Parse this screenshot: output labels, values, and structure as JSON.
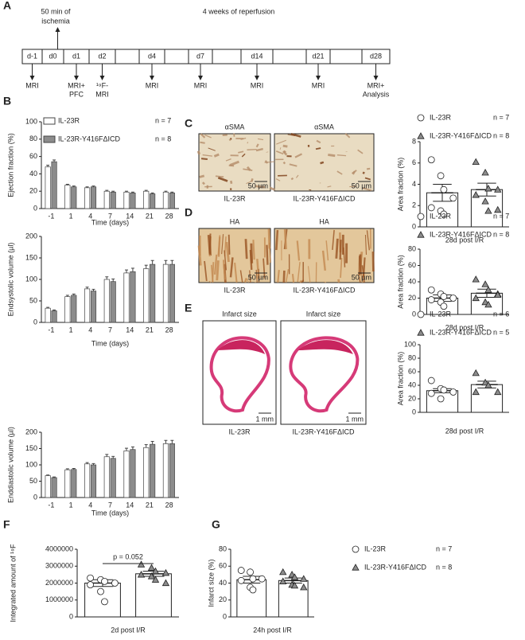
{
  "panel_labels": [
    "A",
    "B",
    "C",
    "D",
    "E",
    "F",
    "G"
  ],
  "timeline": {
    "ischemia": [
      "50 min of",
      "ischemia"
    ],
    "reperfusion": "4 weeks of reperfusion",
    "days": [
      "d-1",
      "d0",
      "d1",
      "d2",
      null,
      "d4",
      null,
      "d7",
      null,
      "d14",
      null,
      "d21",
      null,
      "d28"
    ],
    "events": [
      [
        "MRI"
      ],
      [
        "MRI+",
        "PFC"
      ],
      [
        "¹⁹F-",
        "MRI"
      ],
      [
        "MRI"
      ],
      [
        "MRI"
      ],
      [
        "MRI"
      ],
      [
        "MRI"
      ],
      [
        "MRI+",
        "Analysis"
      ]
    ]
  },
  "micrographs": [
    {
      "labels": [
        "αSMA",
        "αSMA"
      ],
      "scale_bars": [
        "50 µm",
        "50 µm"
      ],
      "captions": [
        "IL-23R",
        "IL-23R-Y416FΔICD"
      ]
    },
    {
      "labels": [
        "HA",
        "HA"
      ],
      "scale_bars": [
        "50 µm",
        "50 µm"
      ],
      "captions": [
        "IL-23R",
        "IL-23R-Y416FΔICD"
      ]
    },
    {
      "labels": [
        "Infarct size",
        "Infarct size"
      ],
      "scale_bars": [
        "1 mm",
        "1 mm"
      ],
      "captions": [
        "IL-23R",
        "IL-23R-Y416FΔICD"
      ]
    }
  ],
  "chart_data": [
    {
      "type": "grouped-bar",
      "y_label": "Ejection fraction (%)",
      "x_label": "Time (days)",
      "categories": [
        "-1",
        "1",
        "4",
        "7",
        "14",
        "21",
        "28"
      ],
      "series": [
        {
          "name": "IL-23R",
          "n_label": "n = 7",
          "color": "#ffffff",
          "values": [
            48,
            27,
            24,
            20,
            19,
            20,
            19
          ],
          "errors": [
            2,
            1,
            1,
            1,
            1,
            1,
            1
          ]
        },
        {
          "name": "IL-23R-Y416FΔICD",
          "n_label": "n = 8",
          "color": "#8c8c8c",
          "values": [
            54,
            25,
            25,
            19,
            18,
            17,
            18
          ],
          "errors": [
            2,
            1,
            1,
            1,
            1,
            1,
            1
          ]
        }
      ],
      "ylim": [
        0,
        100
      ],
      "yticks": [
        0,
        20,
        40,
        60,
        80,
        100
      ]
    },
    {
      "type": "grouped-bar",
      "y_label": "Endsystolic volume (µl)",
      "x_label": "Time (days)",
      "categories": [
        "-1",
        "1",
        "4",
        "7",
        "14",
        "21",
        "28"
      ],
      "series": [
        {
          "color": "#ffffff",
          "values": [
            33,
            60,
            78,
            100,
            115,
            125,
            135
          ],
          "errors": [
            2,
            3,
            4,
            6,
            7,
            8,
            9
          ]
        },
        {
          "color": "#8c8c8c",
          "values": [
            27,
            63,
            73,
            95,
            118,
            135,
            135
          ],
          "errors": [
            2,
            3,
            4,
            6,
            8,
            9,
            9
          ]
        }
      ],
      "ylim": [
        0,
        200
      ],
      "yticks": [
        0,
        50,
        100,
        150,
        200
      ]
    },
    {
      "type": "grouped-bar",
      "y_label": "Enddiastolic volume (µl)",
      "x_label": "Time (days)",
      "categories": [
        "-1",
        "1",
        "4",
        "7",
        "14",
        "21",
        "28"
      ],
      "series": [
        {
          "color": "#ffffff",
          "values": [
            67,
            85,
            103,
            125,
            143,
            153,
            165
          ],
          "errors": [
            2,
            3,
            4,
            7,
            8,
            9,
            10
          ]
        },
        {
          "color": "#8c8c8c",
          "values": [
            61,
            86,
            100,
            120,
            147,
            163,
            165
          ],
          "errors": [
            2,
            3,
            4,
            6,
            8,
            9,
            10
          ]
        }
      ],
      "ylim": [
        0,
        200
      ],
      "yticks": [
        0,
        50,
        100,
        150,
        200
      ]
    },
    {
      "type": "bar-dot",
      "y_label": "Area fraction (%)",
      "x_label": "28d  post I/R",
      "series": [
        {
          "name": "IL-23R",
          "n_label": "n = 7",
          "color": "#ffffff",
          "marker": "circle",
          "value": 3.2,
          "error": 0.8,
          "points": [
            6.3,
            4.8,
            3.5,
            2.7,
            1.8,
            1.5,
            1.2
          ]
        },
        {
          "name": "IL-23R-Y416FΔICD",
          "n_label": "n = 8",
          "color": "#8c8c8c",
          "marker": "triangle",
          "value": 3.5,
          "error": 0.6,
          "points": [
            6.1,
            5.1,
            3.6,
            3.5,
            3.0,
            2.4,
            1.5,
            1.6
          ]
        }
      ],
      "ylim": [
        0,
        8
      ],
      "yticks": [
        0,
        2,
        4,
        6,
        8
      ]
    },
    {
      "type": "bar-dot",
      "y_label": "Area fraction (%)",
      "x_label": "28d  post I/R",
      "series": [
        {
          "name": "IL-23R",
          "n_label": "n = 7",
          "color": "#ffffff",
          "marker": "circle",
          "value": 20,
          "error": 4,
          "points": [
            30,
            25,
            22,
            20,
            18,
            15,
            10
          ]
        },
        {
          "name": "IL-23R-Y416FΔICD",
          "n_label": "n = 8",
          "color": "#8c8c8c",
          "marker": "triangle",
          "value": 26,
          "error": 5,
          "points": [
            43,
            37,
            30,
            25,
            20,
            15,
            12,
            24
          ]
        }
      ],
      "ylim": [
        0,
        80
      ],
      "yticks": [
        0,
        20,
        40,
        60,
        80
      ]
    },
    {
      "type": "bar-dot",
      "y_label": "Area fraction (%)",
      "x_label": "28d post I/R",
      "series": [
        {
          "name": "IL-23R",
          "n_label": "n = 6",
          "color": "#ffffff",
          "marker": "circle",
          "value": 32,
          "error": 3,
          "points": [
            47,
            35,
            33,
            30,
            28,
            20
          ]
        },
        {
          "name": "IL-23R-Y416FΔICD",
          "n_label": "n = 5",
          "color": "#8c8c8c",
          "marker": "triangle",
          "value": 41,
          "error": 5,
          "points": [
            58,
            44,
            40,
            30,
            30
          ]
        }
      ],
      "ylim": [
        0,
        100
      ],
      "yticks": [
        0,
        20,
        40,
        60,
        80,
        100
      ]
    },
    {
      "type": "bar-dot",
      "y_label": "Integrated amount of ¹⁹F",
      "x_label": "2d post I/R",
      "annotation": "p = 0.052",
      "series": [
        {
          "color": "#ffffff",
          "marker": "circle",
          "value": 2000000,
          "error": 200000,
          "points": [
            2300000,
            2200000,
            2100000,
            2000000,
            1900000,
            1500000,
            900000
          ]
        },
        {
          "color": "#8c8c8c",
          "marker": "triangle",
          "value": 2550000,
          "error": 150000,
          "points": [
            3100000,
            2900000,
            2700000,
            2600000,
            2500000,
            2400000,
            2200000,
            2000000
          ]
        }
      ],
      "ylim": [
        0,
        4000000
      ],
      "yticks": [
        0,
        1000000,
        2000000,
        3000000,
        4000000
      ]
    },
    {
      "type": "bar-dot",
      "y_label": "Infarct size (%)",
      "x_label": "24h post I/R",
      "series": [
        {
          "name": "IL-23R",
          "n_label": "n = 7",
          "color": "#ffffff",
          "marker": "circle",
          "value": 44,
          "error": 4,
          "points": [
            55,
            53,
            45,
            45,
            43,
            35,
            32
          ]
        },
        {
          "name": "IL-23R-Y416FΔICD",
          "n_label": "n = 8",
          "color": "#8c8c8c",
          "marker": "triangle",
          "value": 43,
          "error": 3,
          "points": [
            53,
            50,
            47,
            45,
            42,
            38,
            37,
            35
          ]
        }
      ],
      "ylim": [
        0,
        80
      ],
      "yticks": [
        0,
        20,
        40,
        60,
        80
      ]
    }
  ]
}
